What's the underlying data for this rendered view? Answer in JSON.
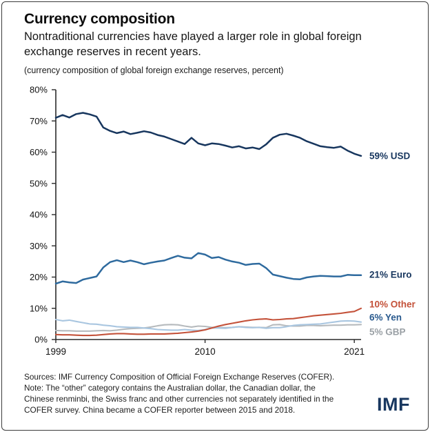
{
  "header": {
    "title": "Currency composition",
    "subtitle": "Nontraditional currencies have played a larger role in global foreign exchange reserves in recent years.",
    "caption": "(currency composition of global foreign exchange reserves, percent)"
  },
  "chart_data": {
    "type": "line",
    "title": "Currency composition",
    "unit": "percent of global foreign exchange reserves",
    "xlim": [
      1999,
      2021.5
    ],
    "ylim": [
      0,
      80
    ],
    "grid": false,
    "legend_position": "end-labels-right",
    "ytick_labels": [
      "0%",
      "10%",
      "20%",
      "30%",
      "40%",
      "50%",
      "60%",
      "70%",
      "80%"
    ],
    "xticks": [
      {
        "label": "1999",
        "value": 1999
      },
      {
        "label": "2010",
        "value": 2010
      },
      {
        "label": "2021",
        "value": 2021
      }
    ],
    "x": [
      1999,
      1999.5,
      2000,
      2000.5,
      2001,
      2001.5,
      2002,
      2002.5,
      2003,
      2003.5,
      2004,
      2004.5,
      2005,
      2005.5,
      2006,
      2006.5,
      2007,
      2007.5,
      2008,
      2008.5,
      2009,
      2009.5,
      2010,
      2010.5,
      2011,
      2011.5,
      2012,
      2012.5,
      2013,
      2013.5,
      2014,
      2014.5,
      2015,
      2015.5,
      2016,
      2016.5,
      2017,
      2017.5,
      2018,
      2018.5,
      2019,
      2019.5,
      2020,
      2020.5,
      2021,
      2021.5
    ],
    "series": [
      {
        "name": "USD",
        "color": "#17365e",
        "label_color": "#17365e",
        "end_label": "59% USD",
        "values": [
          71.0,
          71.9,
          71.1,
          72.2,
          72.6,
          72.1,
          71.4,
          67.9,
          66.8,
          66.1,
          66.6,
          65.8,
          66.2,
          66.7,
          66.3,
          65.5,
          65.0,
          64.2,
          63.4,
          62.6,
          64.6,
          62.8,
          62.2,
          62.8,
          62.6,
          62.1,
          61.5,
          61.9,
          61.2,
          61.5,
          61.0,
          62.5,
          64.6,
          65.6,
          65.9,
          65.3,
          64.6,
          63.5,
          62.7,
          61.9,
          61.6,
          61.4,
          61.8,
          60.5,
          59.5,
          58.8
        ]
      },
      {
        "name": "Euro",
        "color": "#2e6a9e",
        "label_color": "#17365e",
        "end_label": "21% Euro",
        "values": [
          17.9,
          18.6,
          18.3,
          18.1,
          19.2,
          19.7,
          20.2,
          23.1,
          24.8,
          25.4,
          24.8,
          25.3,
          24.8,
          24.1,
          24.6,
          25.0,
          25.3,
          26.1,
          26.8,
          26.2,
          26.0,
          27.7,
          27.2,
          26.1,
          26.4,
          25.6,
          25.0,
          24.6,
          23.9,
          24.2,
          24.3,
          22.9,
          20.8,
          20.3,
          19.8,
          19.4,
          19.3,
          19.9,
          20.2,
          20.4,
          20.3,
          20.2,
          20.2,
          20.7,
          20.6,
          20.6
        ]
      },
      {
        "name": "Other",
        "color": "#c4523a",
        "label_color": "#c4523a",
        "end_label": "10% Other",
        "values": [
          1.6,
          1.5,
          1.5,
          1.4,
          1.3,
          1.3,
          1.4,
          1.6,
          1.8,
          1.9,
          1.9,
          1.8,
          1.7,
          1.7,
          1.8,
          1.8,
          1.8,
          1.9,
          2.0,
          2.2,
          2.4,
          2.7,
          3.1,
          3.7,
          4.3,
          4.8,
          5.2,
          5.6,
          6.0,
          6.3,
          6.5,
          6.6,
          6.3,
          6.4,
          6.6,
          6.7,
          7.0,
          7.3,
          7.6,
          7.8,
          8.0,
          8.2,
          8.4,
          8.7,
          9.0,
          10.0
        ]
      },
      {
        "name": "Yen",
        "color": "#a9c6e0",
        "label_color": "#2a5a8e",
        "end_label": "6% Yen",
        "values": [
          6.4,
          6.0,
          6.2,
          5.8,
          5.4,
          5.0,
          4.9,
          4.6,
          4.4,
          4.1,
          4.0,
          3.9,
          3.9,
          3.7,
          3.5,
          3.2,
          3.1,
          3.0,
          3.0,
          3.2,
          3.0,
          2.9,
          3.2,
          3.7,
          3.7,
          3.6,
          3.9,
          4.1,
          3.9,
          3.8,
          3.9,
          3.6,
          3.8,
          3.8,
          4.1,
          4.5,
          4.7,
          4.8,
          4.9,
          5.0,
          5.3,
          5.6,
          5.9,
          6.0,
          5.9,
          5.6
        ]
      },
      {
        "name": "GBP",
        "color": "#b6babd",
        "label_color": "#9aa0a5",
        "end_label": "5% GBP",
        "values": [
          2.9,
          2.8,
          2.8,
          2.7,
          2.7,
          2.7,
          2.8,
          2.9,
          2.8,
          3.0,
          3.3,
          3.5,
          3.6,
          3.7,
          4.0,
          4.4,
          4.7,
          4.8,
          4.7,
          4.3,
          4.0,
          4.3,
          4.2,
          3.9,
          3.9,
          3.8,
          3.9,
          4.1,
          4.0,
          3.9,
          3.9,
          3.8,
          4.7,
          4.8,
          4.4,
          4.3,
          4.3,
          4.5,
          4.5,
          4.4,
          4.5,
          4.6,
          4.6,
          4.7,
          4.7,
          4.8
        ]
      }
    ]
  },
  "footer": {
    "sources": "Sources: IMF Currency Composition of Official Foreign Exchange Reserves (COFER).",
    "note": "Note: The “other” category contains the Australian dollar, the Canadian dollar, the Chinese renminbi, the Swiss franc and other currencies not separately identified in the COFER survey. China became a COFER reporter between 2015 and 2018.",
    "logo": "IMF"
  }
}
